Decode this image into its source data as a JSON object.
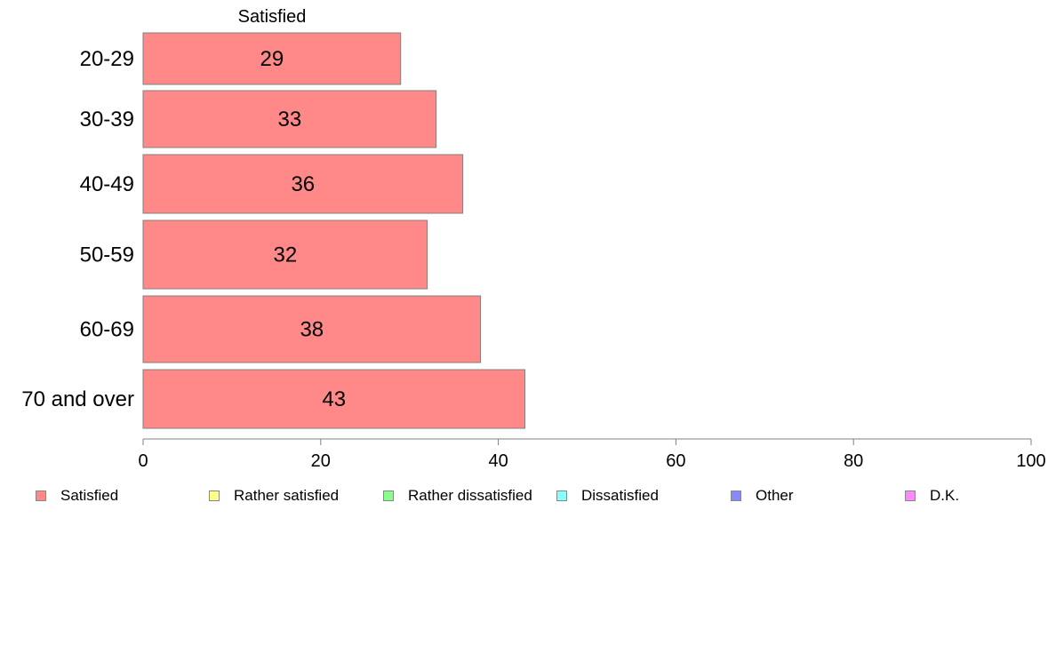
{
  "chart_data": {
    "type": "bar",
    "orientation": "horizontal",
    "categories": [
      "20-29",
      "30-39",
      "40-49",
      "50-59",
      "60-69",
      "70 and over"
    ],
    "series": [
      {
        "name": "Satisfied",
        "color": "#ff8888",
        "values": [
          29,
          33,
          36,
          32,
          38,
          43
        ]
      }
    ],
    "data_labels": [
      "29",
      "33",
      "36",
      "32",
      "38",
      "43"
    ],
    "xlim": [
      0,
      100
    ],
    "x_ticks": [
      0,
      20,
      40,
      60,
      80,
      100
    ],
    "grid": false,
    "legend": {
      "placement": "bottom",
      "entries": [
        {
          "label": "Satisfied",
          "color": "#ff8888"
        },
        {
          "label": "Rather satisfied",
          "color": "#ffff88"
        },
        {
          "label": "Rather dissatisfied",
          "color": "#88ff88"
        },
        {
          "label": "Dissatisfied",
          "color": "#88ffff"
        },
        {
          "label": "Other",
          "color": "#8888ff"
        },
        {
          "label": "D.K.",
          "color": "#ff88ff"
        }
      ]
    }
  }
}
